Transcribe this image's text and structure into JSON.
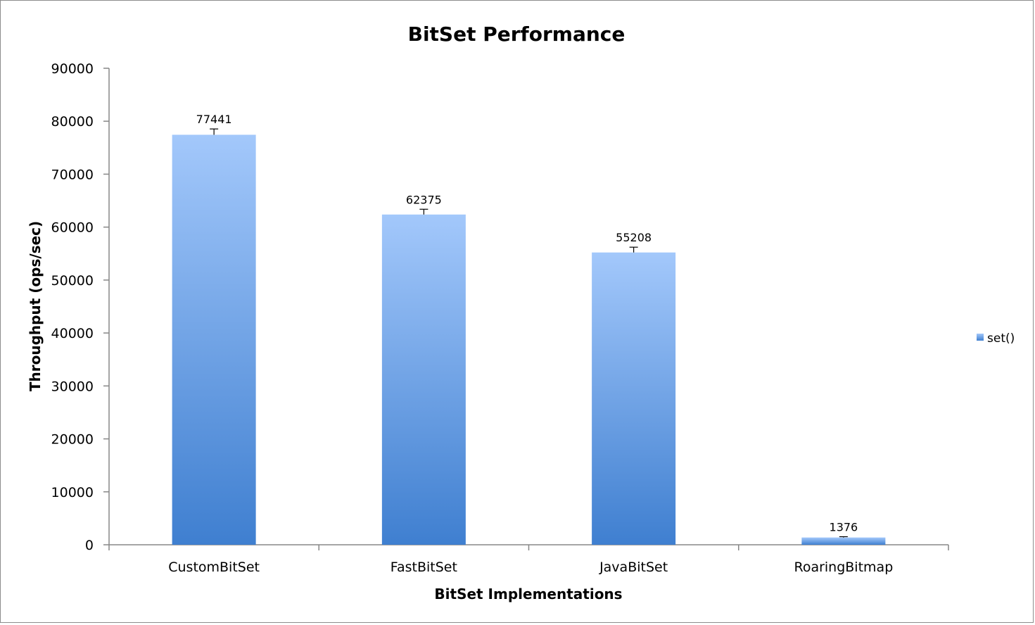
{
  "chart_data": {
    "type": "bar",
    "title": "BitSet Performance",
    "xlabel": "BitSet Implementations",
    "ylabel": "Throughput (ops/sec)",
    "categories": [
      "CustomBitSet",
      "FastBitSet",
      "JavaBitSet",
      "RoaringBitmap"
    ],
    "series": [
      {
        "name": "set()",
        "values": [
          77441,
          62375,
          55208,
          1376
        ],
        "error": [
          1100,
          1000,
          1000,
          150
        ]
      }
    ],
    "data_labels": [
      "77441",
      "62375",
      "55208",
      "1376"
    ],
    "ylim": [
      0,
      90000
    ],
    "yticks": [
      0,
      10000,
      20000,
      30000,
      40000,
      50000,
      60000,
      70000,
      80000,
      90000
    ],
    "ytick_labels": [
      "0",
      "10000",
      "20000",
      "30000",
      "40000",
      "50000",
      "60000",
      "70000",
      "80000",
      "90000"
    ],
    "grid": false,
    "legend": {
      "position": "right",
      "entries": [
        "set()"
      ]
    },
    "colors": {
      "bar_top": "#a3c8fb",
      "bar_bottom": "#3f7fd0",
      "axis": "#878787",
      "frame": "#8c8c8c"
    }
  }
}
